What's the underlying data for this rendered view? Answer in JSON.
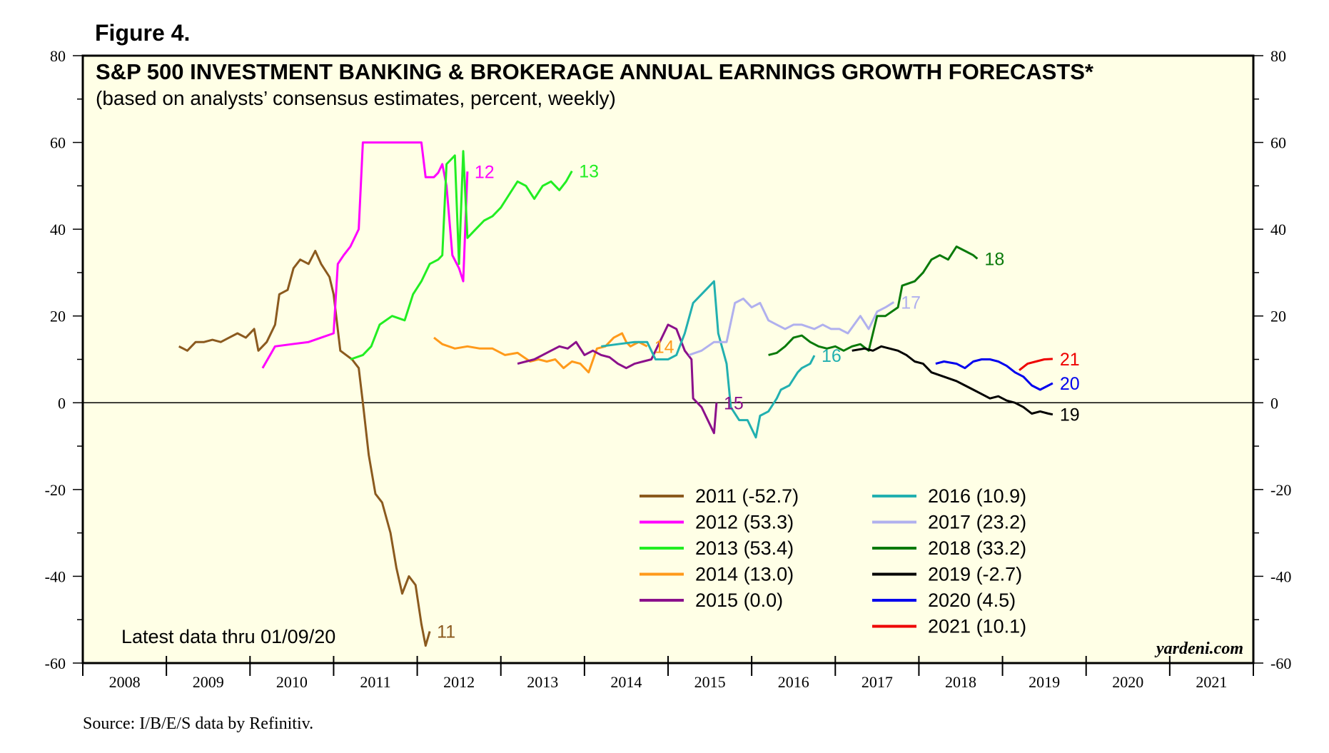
{
  "figure_label": "Figure 4.",
  "source": "Source: I/B/E/S data by Refinitiv.",
  "brand": "yardeni.com",
  "note": "Latest data thru 01/09/20",
  "colors": {
    "background": "#ffffe6",
    "frame": "#000000"
  },
  "chart_data": {
    "type": "line",
    "title": "S&P 500 INVESTMENT BANKING & BROKERAGE ANNUAL EARNINGS GROWTH FORECASTS*",
    "subtitle": "(based on analysts’ consensus estimates, percent, weekly)",
    "ylim": [
      -60,
      80
    ],
    "y_ticks": [
      80,
      60,
      40,
      20,
      0,
      -20,
      -40,
      -60
    ],
    "y_tick_labels": [
      "80",
      "60",
      "40",
      "20",
      "0",
      "-20",
      "-40",
      "-60"
    ],
    "xlim": [
      2008,
      2022
    ],
    "x_year_labels": [
      "2008",
      "2009",
      "2010",
      "2011",
      "2012",
      "2013",
      "2014",
      "2015",
      "2016",
      "2017",
      "2018",
      "2019",
      "2020",
      "2021"
    ],
    "zero_line": true,
    "grid": false,
    "legend_position": "bottom-center",
    "series": [
      {
        "name": "2011 (-52.7)",
        "label": "11",
        "color": "#8b5a1e",
        "points": [
          [
            2009.15,
            13
          ],
          [
            2009.25,
            12
          ],
          [
            2009.35,
            14
          ],
          [
            2009.45,
            14
          ],
          [
            2009.55,
            14.5
          ],
          [
            2009.65,
            14
          ],
          [
            2009.75,
            15
          ],
          [
            2009.85,
            16
          ],
          [
            2009.95,
            15
          ],
          [
            2010.05,
            17
          ],
          [
            2010.1,
            12
          ],
          [
            2010.2,
            14
          ],
          [
            2010.3,
            18
          ],
          [
            2010.35,
            25
          ],
          [
            2010.45,
            26
          ],
          [
            2010.52,
            31
          ],
          [
            2010.6,
            33
          ],
          [
            2010.7,
            32
          ],
          [
            2010.78,
            35
          ],
          [
            2010.85,
            32
          ],
          [
            2010.95,
            29
          ],
          [
            2011.0,
            25
          ],
          [
            2011.08,
            12
          ],
          [
            2011.15,
            11
          ],
          [
            2011.22,
            10
          ],
          [
            2011.3,
            8
          ],
          [
            2011.35,
            0
          ],
          [
            2011.42,
            -12
          ],
          [
            2011.5,
            -21
          ],
          [
            2011.58,
            -23
          ],
          [
            2011.68,
            -30
          ],
          [
            2011.75,
            -38
          ],
          [
            2011.82,
            -44
          ],
          [
            2011.9,
            -40
          ],
          [
            2011.98,
            -42
          ],
          [
            2012.05,
            -51
          ],
          [
            2012.1,
            -56
          ],
          [
            2012.15,
            -52.7
          ]
        ]
      },
      {
        "name": "2012 (53.3)",
        "label": "12",
        "color": "#ff00ff",
        "points": [
          [
            2010.15,
            8
          ],
          [
            2010.3,
            13
          ],
          [
            2010.5,
            13.5
          ],
          [
            2010.7,
            14
          ],
          [
            2010.85,
            15
          ],
          [
            2011.0,
            16
          ],
          [
            2011.05,
            32
          ],
          [
            2011.12,
            34
          ],
          [
            2011.2,
            36
          ],
          [
            2011.3,
            40
          ],
          [
            2011.35,
            60
          ],
          [
            2011.6,
            60
          ],
          [
            2011.9,
            60
          ],
          [
            2012.05,
            60
          ],
          [
            2012.1,
            52
          ],
          [
            2012.2,
            52
          ],
          [
            2012.25,
            53
          ],
          [
            2012.3,
            55
          ],
          [
            2012.35,
            50
          ],
          [
            2012.42,
            34
          ],
          [
            2012.5,
            31
          ],
          [
            2012.55,
            28
          ],
          [
            2012.6,
            53.3
          ]
        ]
      },
      {
        "name": "2013 (53.4)",
        "label": "13",
        "color": "#22ee22",
        "points": [
          [
            2011.2,
            10
          ],
          [
            2011.35,
            11
          ],
          [
            2011.45,
            13
          ],
          [
            2011.55,
            18
          ],
          [
            2011.7,
            20
          ],
          [
            2011.85,
            19
          ],
          [
            2011.95,
            25
          ],
          [
            2012.05,
            28
          ],
          [
            2012.15,
            32
          ],
          [
            2012.25,
            33
          ],
          [
            2012.3,
            34
          ],
          [
            2012.35,
            55
          ],
          [
            2012.45,
            57
          ],
          [
            2012.5,
            32
          ],
          [
            2012.55,
            58
          ],
          [
            2012.6,
            38
          ],
          [
            2012.7,
            40
          ],
          [
            2012.8,
            42
          ],
          [
            2012.9,
            43
          ],
          [
            2013.0,
            45
          ],
          [
            2013.1,
            48
          ],
          [
            2013.2,
            51
          ],
          [
            2013.3,
            50
          ],
          [
            2013.4,
            47
          ],
          [
            2013.5,
            50
          ],
          [
            2013.6,
            51
          ],
          [
            2013.7,
            49
          ],
          [
            2013.78,
            51
          ],
          [
            2013.85,
            53.4
          ]
        ]
      },
      {
        "name": "2014 (13.0)",
        "label": "14",
        "color": "#ff9a1a",
        "points": [
          [
            2012.2,
            15
          ],
          [
            2012.3,
            13.5
          ],
          [
            2012.45,
            12.5
          ],
          [
            2012.6,
            13
          ],
          [
            2012.75,
            12.5
          ],
          [
            2012.9,
            12.5
          ],
          [
            2013.05,
            11
          ],
          [
            2013.2,
            11.5
          ],
          [
            2013.35,
            9.5
          ],
          [
            2013.45,
            10
          ],
          [
            2013.55,
            9.5
          ],
          [
            2013.65,
            10
          ],
          [
            2013.75,
            8
          ],
          [
            2013.85,
            9.5
          ],
          [
            2013.95,
            9
          ],
          [
            2014.05,
            7
          ],
          [
            2014.15,
            12.5
          ],
          [
            2014.25,
            13
          ],
          [
            2014.35,
            15
          ],
          [
            2014.45,
            16
          ],
          [
            2014.5,
            14
          ],
          [
            2014.55,
            13
          ],
          [
            2014.6,
            13.5
          ],
          [
            2014.65,
            14
          ],
          [
            2014.75,
            13.0
          ]
        ]
      },
      {
        "name": "2015 (0.0)",
        "label": "15",
        "color": "#8b108b",
        "points": [
          [
            2013.2,
            9
          ],
          [
            2013.3,
            9.5
          ],
          [
            2013.4,
            10
          ],
          [
            2013.5,
            11
          ],
          [
            2013.6,
            12
          ],
          [
            2013.7,
            13
          ],
          [
            2013.8,
            12.5
          ],
          [
            2013.9,
            14
          ],
          [
            2014.0,
            11
          ],
          [
            2014.1,
            12
          ],
          [
            2014.2,
            11
          ],
          [
            2014.3,
            10.5
          ],
          [
            2014.4,
            9
          ],
          [
            2014.5,
            8
          ],
          [
            2014.6,
            9
          ],
          [
            2014.7,
            9.5
          ],
          [
            2014.8,
            10
          ],
          [
            2014.9,
            14
          ],
          [
            2015.0,
            18
          ],
          [
            2015.1,
            17
          ],
          [
            2015.2,
            12
          ],
          [
            2015.28,
            10
          ],
          [
            2015.3,
            1
          ],
          [
            2015.4,
            -1
          ],
          [
            2015.5,
            -5
          ],
          [
            2015.55,
            -7
          ],
          [
            2015.58,
            0.0
          ]
        ]
      },
      {
        "name": "2016 (10.9)",
        "label": "16",
        "color": "#22b0b0",
        "points": [
          [
            2014.2,
            13
          ],
          [
            2014.4,
            13.5
          ],
          [
            2014.6,
            14
          ],
          [
            2014.75,
            14
          ],
          [
            2014.85,
            10
          ],
          [
            2015.0,
            10
          ],
          [
            2015.1,
            11
          ],
          [
            2015.2,
            16
          ],
          [
            2015.3,
            23
          ],
          [
            2015.4,
            25
          ],
          [
            2015.5,
            27
          ],
          [
            2015.55,
            28
          ],
          [
            2015.6,
            16
          ],
          [
            2015.7,
            9
          ],
          [
            2015.75,
            -1
          ],
          [
            2015.85,
            -4
          ],
          [
            2015.95,
            -4
          ],
          [
            2016.05,
            -8
          ],
          [
            2016.1,
            -3
          ],
          [
            2016.2,
            -2
          ],
          [
            2016.3,
            1
          ],
          [
            2016.35,
            3
          ],
          [
            2016.45,
            4
          ],
          [
            2016.55,
            7
          ],
          [
            2016.6,
            8
          ],
          [
            2016.7,
            9
          ],
          [
            2016.75,
            10.9
          ]
        ]
      },
      {
        "name": "2017 (23.2)",
        "label": "17",
        "color": "#b0b0ee",
        "points": [
          [
            2015.25,
            11
          ],
          [
            2015.4,
            12
          ],
          [
            2015.55,
            14
          ],
          [
            2015.7,
            14
          ],
          [
            2015.8,
            23
          ],
          [
            2015.9,
            24
          ],
          [
            2016.0,
            22
          ],
          [
            2016.1,
            23
          ],
          [
            2016.2,
            19
          ],
          [
            2016.3,
            18
          ],
          [
            2016.4,
            17
          ],
          [
            2016.5,
            18
          ],
          [
            2016.6,
            18
          ],
          [
            2016.75,
            17
          ],
          [
            2016.85,
            18
          ],
          [
            2016.95,
            17
          ],
          [
            2017.05,
            17
          ],
          [
            2017.15,
            16
          ],
          [
            2017.3,
            20
          ],
          [
            2017.4,
            17
          ],
          [
            2017.5,
            21
          ],
          [
            2017.6,
            22
          ],
          [
            2017.7,
            23.2
          ]
        ]
      },
      {
        "name": "2018 (33.2)",
        "label": "18",
        "color": "#0a7a0a",
        "points": [
          [
            2016.2,
            11
          ],
          [
            2016.3,
            11.5
          ],
          [
            2016.4,
            13
          ],
          [
            2016.5,
            15
          ],
          [
            2016.6,
            15.5
          ],
          [
            2016.7,
            14
          ],
          [
            2016.8,
            13
          ],
          [
            2016.9,
            12.5
          ],
          [
            2017.0,
            13
          ],
          [
            2017.1,
            12
          ],
          [
            2017.2,
            13
          ],
          [
            2017.3,
            13.5
          ],
          [
            2017.4,
            12
          ],
          [
            2017.5,
            20
          ],
          [
            2017.6,
            20
          ],
          [
            2017.75,
            22
          ],
          [
            2017.8,
            27
          ],
          [
            2017.95,
            28
          ],
          [
            2018.05,
            30
          ],
          [
            2018.15,
            33
          ],
          [
            2018.25,
            34
          ],
          [
            2018.35,
            33
          ],
          [
            2018.45,
            36
          ],
          [
            2018.55,
            35
          ],
          [
            2018.65,
            34
          ],
          [
            2018.7,
            33.2
          ]
        ]
      },
      {
        "name": "2019 (-2.7)",
        "label": "19",
        "color": "#000000",
        "points": [
          [
            2017.2,
            12
          ],
          [
            2017.35,
            12.5
          ],
          [
            2017.45,
            12
          ],
          [
            2017.55,
            13
          ],
          [
            2017.65,
            12.5
          ],
          [
            2017.75,
            12
          ],
          [
            2017.85,
            11
          ],
          [
            2017.95,
            9.5
          ],
          [
            2018.05,
            9
          ],
          [
            2018.15,
            7
          ],
          [
            2018.3,
            6
          ],
          [
            2018.45,
            5
          ],
          [
            2018.55,
            4
          ],
          [
            2018.65,
            3
          ],
          [
            2018.75,
            2
          ],
          [
            2018.85,
            1
          ],
          [
            2018.95,
            1.5
          ],
          [
            2019.05,
            0.5
          ],
          [
            2019.15,
            0
          ],
          [
            2019.25,
            -1
          ],
          [
            2019.35,
            -2.5
          ],
          [
            2019.45,
            -2
          ],
          [
            2019.55,
            -2.5
          ],
          [
            2019.6,
            -2.7
          ]
        ]
      },
      {
        "name": "2020 (4.5)",
        "label": "20",
        "color": "#0000ee",
        "points": [
          [
            2018.2,
            9
          ],
          [
            2018.3,
            9.5
          ],
          [
            2018.45,
            9
          ],
          [
            2018.55,
            8
          ],
          [
            2018.65,
            9.5
          ],
          [
            2018.75,
            10
          ],
          [
            2018.85,
            10
          ],
          [
            2018.95,
            9.5
          ],
          [
            2019.05,
            8.5
          ],
          [
            2019.15,
            7
          ],
          [
            2019.25,
            6
          ],
          [
            2019.35,
            4
          ],
          [
            2019.45,
            3
          ],
          [
            2019.55,
            4
          ],
          [
            2019.6,
            4.5
          ]
        ]
      },
      {
        "name": "2021 (10.1)",
        "label": "21",
        "color": "#ee0000",
        "points": [
          [
            2019.2,
            7.5
          ],
          [
            2019.3,
            9
          ],
          [
            2019.4,
            9.5
          ],
          [
            2019.5,
            10
          ],
          [
            2019.6,
            10.1
          ]
        ]
      }
    ]
  }
}
